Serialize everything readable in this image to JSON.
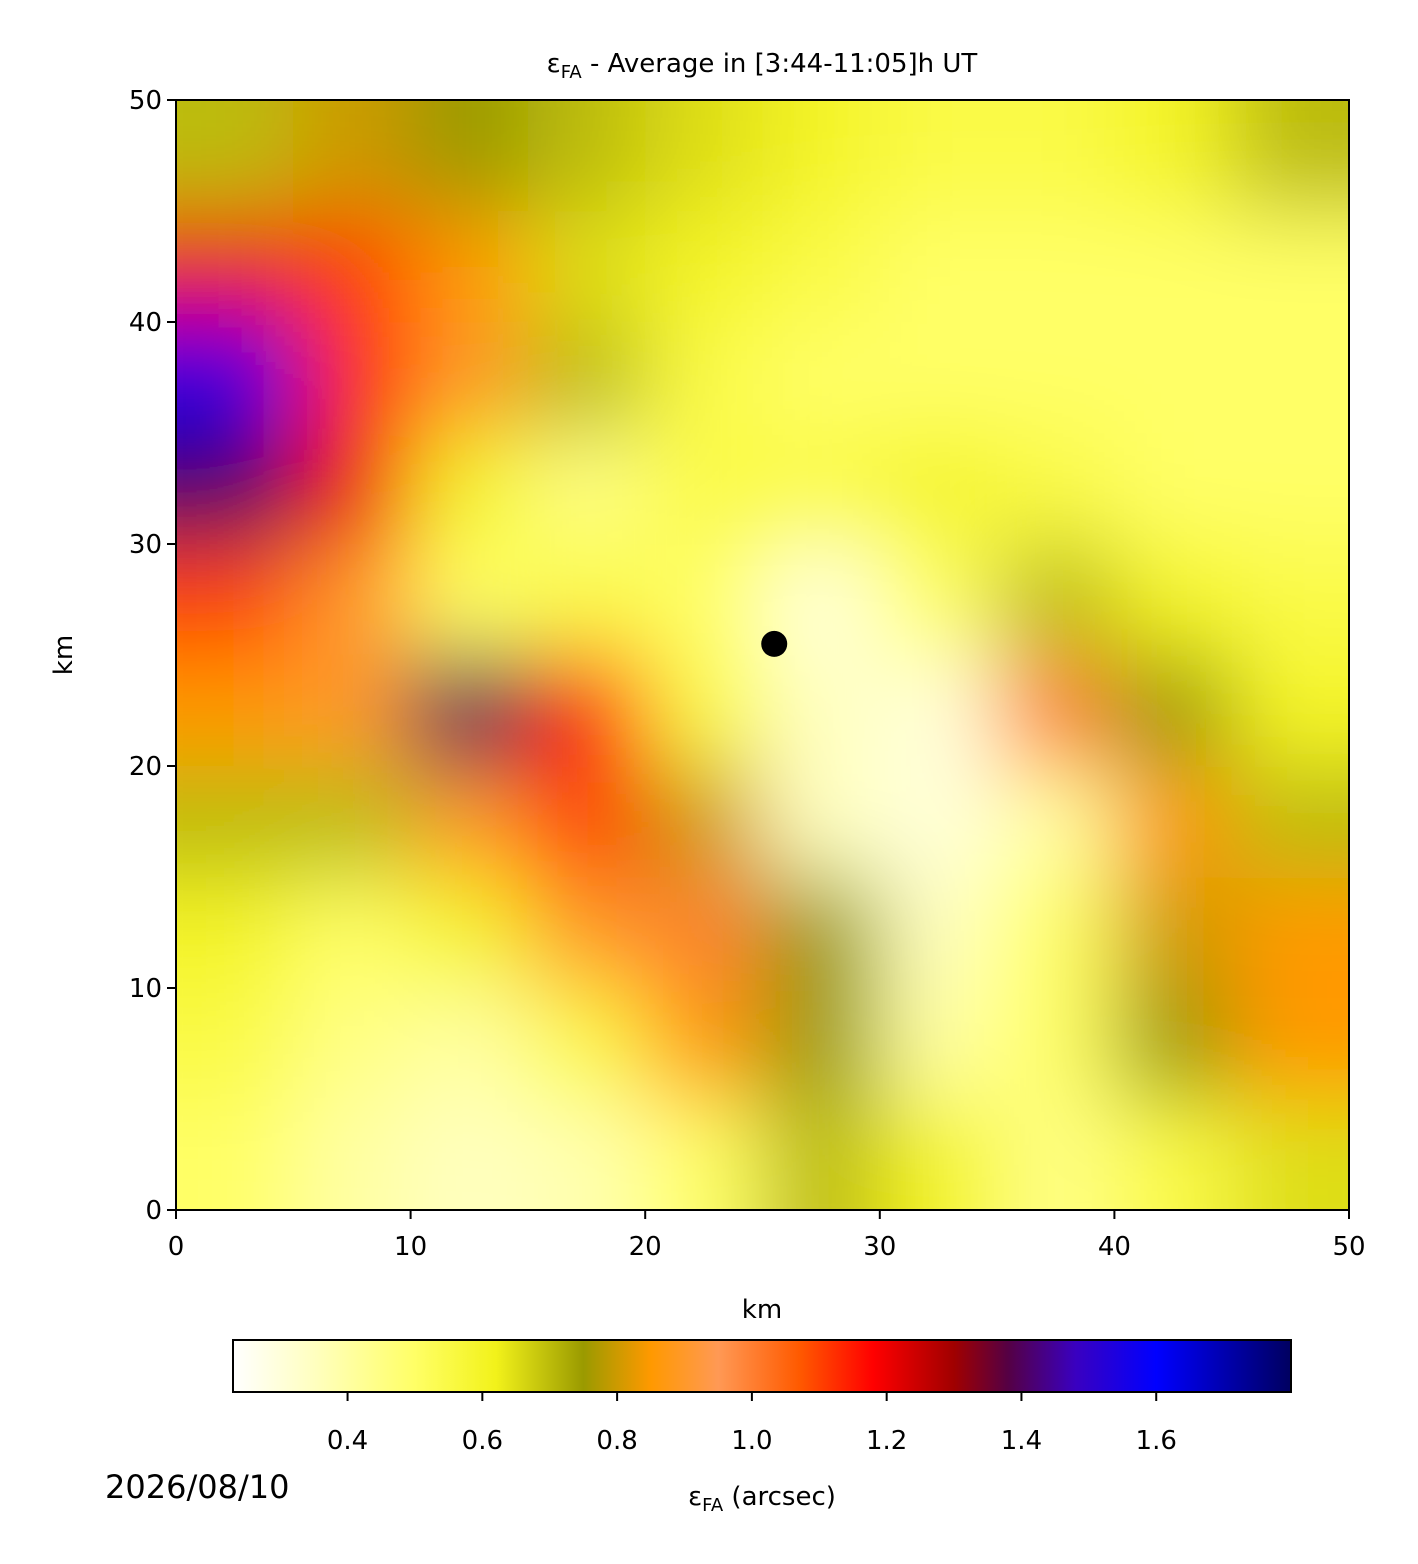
{
  "chart_data": {
    "type": "heatmap",
    "title": {
      "symbol": "ε",
      "subscript": "FA",
      "text": " - Average in [3:44-11:05]h UT"
    },
    "x_label": "km",
    "y_label": "km",
    "xbins": [
      0,
      5,
      10,
      15,
      20,
      25,
      30,
      35,
      40,
      45,
      50
    ],
    "ybins": [
      0,
      5,
      10,
      15,
      20,
      25,
      30,
      35,
      40,
      45,
      50
    ],
    "z": [
      [
        0.5,
        0.4,
        0.35,
        0.38,
        0.5,
        0.7,
        0.6,
        0.45,
        0.55,
        0.65
      ],
      [
        0.55,
        0.45,
        0.4,
        0.55,
        0.85,
        0.75,
        0.4,
        0.5,
        0.75,
        0.85
      ],
      [
        0.6,
        0.5,
        0.6,
        0.9,
        1.0,
        0.75,
        0.35,
        0.5,
        0.8,
        0.85
      ],
      [
        0.7,
        0.7,
        0.9,
        1.1,
        0.8,
        0.35,
        0.3,
        0.4,
        0.85,
        0.7
      ],
      [
        0.85,
        0.9,
        1.4,
        1.15,
        0.55,
        0.35,
        0.3,
        1.0,
        0.75,
        0.6
      ],
      [
        1.1,
        0.9,
        0.5,
        0.55,
        0.5,
        0.3,
        0.5,
        0.7,
        0.6,
        0.55
      ],
      [
        1.4,
        1.2,
        0.6,
        0.45,
        0.55,
        0.55,
        0.6,
        0.55,
        0.5,
        0.5
      ],
      [
        1.55,
        1.15,
        0.9,
        0.7,
        0.55,
        0.5,
        0.5,
        0.5,
        0.5,
        0.5
      ],
      [
        1.2,
        1.1,
        0.85,
        0.65,
        0.6,
        0.55,
        0.5,
        0.5,
        0.5,
        0.5
      ],
      [
        0.7,
        0.8,
        0.75,
        0.7,
        0.65,
        0.6,
        0.55,
        0.55,
        0.6,
        0.7
      ]
    ],
    "point": {
      "x": 25.5,
      "y": 25.5,
      "color": "#000000"
    },
    "xlim": [
      0,
      50
    ],
    "ylim": [
      0,
      50
    ],
    "xticks": [
      0,
      10,
      20,
      30,
      40,
      50
    ],
    "yticks": [
      0,
      10,
      20,
      30,
      40,
      50
    ],
    "colorbar": {
      "label": {
        "symbol": "ε",
        "subscript": "FA",
        "text": " (arcsec)"
      },
      "lim": [
        0.23,
        1.8
      ],
      "ticks": [
        0.4,
        0.6,
        0.8,
        {
          "value": 1,
          "label": "1.0"
        },
        1.2,
        1.4,
        1.6
      ]
    },
    "colormap": [
      {
        "value": 0.23,
        "color": "#ffffff"
      },
      {
        "value": 0.35,
        "color": "#ffffc0"
      },
      {
        "value": 0.5,
        "color": "#ffff66"
      },
      {
        "value": 0.62,
        "color": "#f2f21a"
      },
      {
        "value": 0.75,
        "color": "#9a9a00"
      },
      {
        "value": 0.85,
        "color": "#ff9900"
      },
      {
        "value": 0.95,
        "color": "#ff9955"
      },
      {
        "value": 1.07,
        "color": "#ff5a00"
      },
      {
        "value": 1.18,
        "color": "#ff0000"
      },
      {
        "value": 1.3,
        "color": "#a00000"
      },
      {
        "value": 1.38,
        "color": "#550044"
      },
      {
        "value": 1.48,
        "color": "#3a00c0"
      },
      {
        "value": 1.6,
        "color": "#0000ff"
      },
      {
        "value": 1.8,
        "color": "#000060"
      }
    ],
    "date": "2026/08/10"
  }
}
